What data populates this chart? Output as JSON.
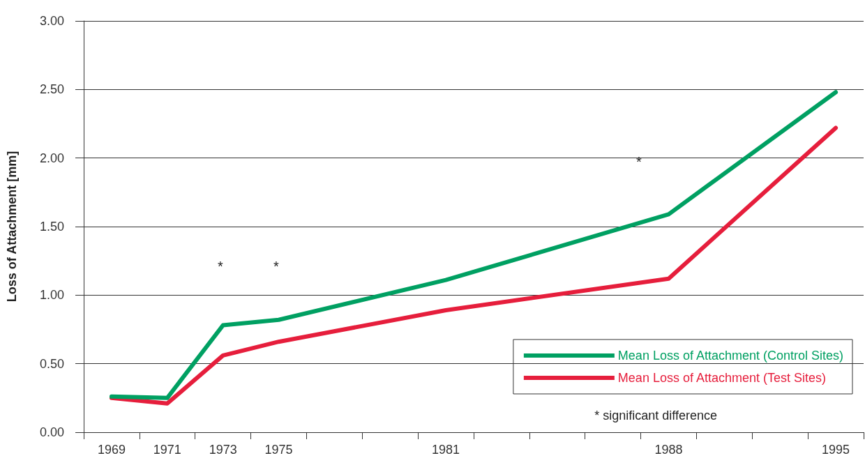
{
  "chart_data": {
    "type": "line",
    "ylabel": "Loss of Attachment [mm]",
    "categories": [
      "1969",
      "1971",
      "1973",
      "1975",
      null,
      null,
      "1981",
      null,
      null,
      null,
      "1988",
      null,
      null,
      "1995"
    ],
    "series": [
      {
        "name": "Mean Loss of Attachment (Control Sites)",
        "color": "#00a062",
        "values": [
          0.26,
          0.25,
          0.78,
          0.82,
          null,
          null,
          1.11,
          null,
          null,
          null,
          1.59,
          null,
          null,
          2.48
        ]
      },
      {
        "name": "Mean Loss of Attachment (Test Sites)",
        "color": "#e61e3c",
        "values": [
          0.25,
          0.21,
          0.56,
          0.66,
          null,
          null,
          0.89,
          null,
          null,
          null,
          1.12,
          null,
          null,
          2.22
        ]
      }
    ],
    "ylim": [
      0,
      3
    ],
    "yticks": [
      {
        "value": 0,
        "label": "0.00"
      },
      {
        "value": 0.5,
        "label": "0.50"
      },
      {
        "value": 1,
        "label": "1.00"
      },
      {
        "value": 1.5,
        "label": "1.50"
      },
      {
        "value": 2,
        "label": "2.00"
      },
      {
        "value": 2.5,
        "label": "2.50"
      },
      {
        "value": 3,
        "label": "3.00"
      }
    ],
    "annotations": [
      "*",
      "*",
      "*",
      "* significant difference"
    ],
    "grid": "y",
    "legend": "bottom right",
    "marker": "none",
    "line_style": "solid"
  }
}
